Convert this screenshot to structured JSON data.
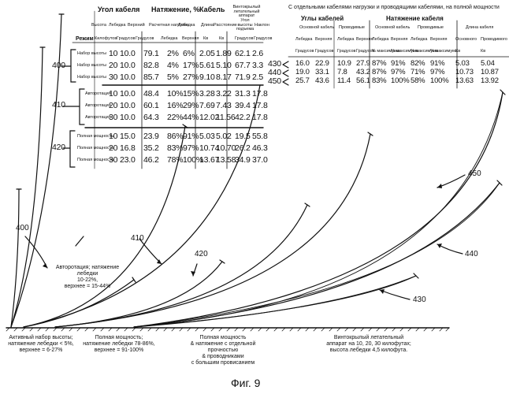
{
  "left_table": {
    "header_top": [
      "Угол кабеля",
      "Натяжение, %",
      "Кабель",
      "Винтокрылый летательный аппарат"
    ],
    "header_sub": [
      "Высота",
      "Лебедка",
      "Верхний",
      "Расчетная нагрузка",
      "Лебедка",
      "Верхняя",
      "Длина",
      "Расстояние",
      "Угол высоты подъема",
      "Наклон"
    ],
    "units_label": "Режим",
    "units": [
      "Килофутов",
      "Градусов",
      "Градусов",
      "Лебедка",
      "Верхняя",
      "Кв",
      "Кв",
      "Градусов",
      "Градусов"
    ],
    "group_labels": [
      "400",
      "410",
      "420"
    ],
    "groups": [
      {
        "modes": [
          "Набор высоты",
          "Набор высоты",
          "Набор высоты"
        ],
        "rows": [
          [
            "10",
            "10.0",
            "79.1",
            "2%",
            "6%",
            "2.05",
            "1.89",
            "62.1",
            "2.6"
          ],
          [
            "20",
            "10.0",
            "82.8",
            "4%",
            "17%",
            "5.61",
            "5.10",
            "67.7",
            "3.3"
          ],
          [
            "30",
            "10.0",
            "85.7",
            "5%",
            "27%",
            "9.10",
            "8.17",
            "71.9",
            "2.5"
          ]
        ]
      },
      {
        "modes": [
          "Авторотация",
          "Авторотация",
          "Авторотация"
        ],
        "rows": [
          [
            "10",
            "10.0",
            "48.4",
            "10%",
            "15%",
            "3.28",
            "3.22",
            "31.3",
            "17.8"
          ],
          [
            "20",
            "10.0",
            "60.1",
            "16%",
            "29%",
            "7.69",
            "7.43",
            "39.4",
            "17.8"
          ],
          [
            "30",
            "10.0",
            "64.3",
            "22%",
            "44%",
            "12.02",
            "11.56",
            "42.2",
            "17.8"
          ]
        ]
      },
      {
        "modes": [
          "Полная мощность",
          "Полная мощность",
          "Полная мощность"
        ],
        "rows": [
          [
            "10",
            "15.0",
            "23.9",
            "86%",
            "91%",
            "5.03",
            "5.02",
            "19.5",
            "55.8"
          ],
          [
            "20",
            "16.8",
            "35.2",
            "83%",
            "97%",
            "10.74",
            "10.70",
            "26.2",
            "46.3"
          ],
          [
            "30",
            "23.0",
            "46.2",
            "78%",
            "100%",
            "13.67",
            "13.58",
            "34.9",
            "37.0"
          ]
        ]
      }
    ]
  },
  "right_table": {
    "title": "С отдельными кабелями нагрузки и проводящими кабелями, на полной мощности",
    "header_top": [
      "Углы кабелей",
      "Натяжение кабеля"
    ],
    "header_mid": [
      "Основной кабель",
      "Проводимые",
      "Основной кабель",
      "Проводимые",
      "Длина кабеля"
    ],
    "header_sub": [
      "Лебедка",
      "Верхняя",
      "Лебедка",
      "Верхняя",
      "Лебедка",
      "Верхняя",
      "Лебедка",
      "Верхняя",
      "Основного",
      "Проводимого"
    ],
    "units": [
      "Градусов",
      "Градусов",
      "Градусов",
      "Градусов",
      "% максимума",
      "% максимума",
      "% максимума",
      "% максимума",
      "Кв",
      "Кв"
    ],
    "rows": [
      {
        "label": "430",
        "values": [
          "16.0",
          "22.9",
          "10.9",
          "27.9",
          "87%",
          "91%",
          "82%",
          "91%",
          "5.03",
          "5.04"
        ]
      },
      {
        "label": "440",
        "values": [
          "19.0",
          "33.1",
          "7.8",
          "43.2",
          "87%",
          "97%",
          "71%",
          "97%",
          "10.73",
          "10.87"
        ]
      },
      {
        "label": "450",
        "values": [
          "25.7",
          "43.6",
          "11.4",
          "56.1",
          "83%",
          "100%",
          "58%",
          "100%",
          "13.63",
          "13.92"
        ]
      }
    ]
  },
  "diagram": {
    "curve_labels": [
      "400",
      "410",
      "420",
      "450",
      "440",
      "430"
    ],
    "annotation_autorotation": [
      "Авторотация; натяжение",
      "лебедки",
      "10-22%,",
      "верхнее = 15-44%"
    ],
    "captions": [
      [
        "Активный набор высоты;",
        "натяжение лебедки < 5%,",
        "верхнее = 6-27%"
      ],
      [
        "Полная мощность;",
        "натяжение лебедки 78-86%,",
        "верхнее = 91-100%"
      ],
      [
        "Полная мощность",
        "& натяжение с отдельной",
        "прочностью",
        "& проводниками",
        "с большим провисанием"
      ],
      [
        "Винтокрылый летательный",
        "аппарат на 10, 20, 30 килофутах;",
        "высота лебедки 4,5 килофута."
      ]
    ]
  },
  "figure_caption": "Фиг. 9"
}
